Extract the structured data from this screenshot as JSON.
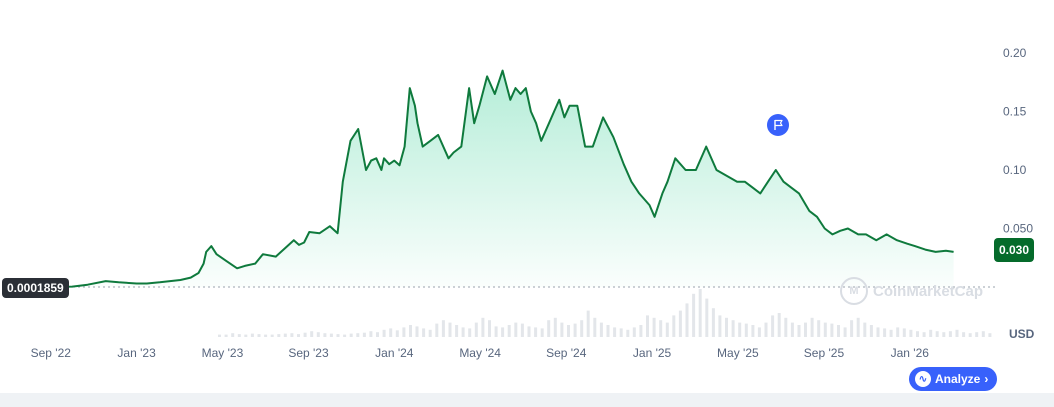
{
  "chart_data": {
    "type": "area",
    "title": "",
    "xlabel": "",
    "ylabel": "",
    "currency": "USD",
    "yticks": [
      "0.20",
      "0.15",
      "0.10",
      "0.050"
    ],
    "ytick_values": [
      0.2,
      0.15,
      0.1,
      0.05
    ],
    "ylim": [
      -0.01,
      0.215
    ],
    "xticks": [
      "Sep '22",
      "Jan '23",
      "May '23",
      "Sep '23",
      "Jan '24",
      "May '24",
      "Sep '24",
      "Jan '25",
      "May '25",
      "Sep '25",
      "Jan '26"
    ],
    "xtick_values": [
      2022.667,
      2023.0,
      2023.333,
      2023.667,
      2024.0,
      2024.333,
      2024.667,
      2025.0,
      2025.333,
      2025.667,
      2026.0
    ],
    "xlim": [
      2022.47,
      2026.35
    ],
    "min_label": "0.0001859",
    "last_label": "0.030",
    "series": [
      {
        "color": "#16a34a",
        "x": [
          2022.48,
          2022.53,
          2022.58,
          2022.63,
          2022.67,
          2022.75,
          2022.81,
          2022.88,
          2022.93,
          2023.0,
          2023.04,
          2023.09,
          2023.13,
          2023.17,
          2023.21,
          2023.24,
          2023.26,
          2023.27,
          2023.29,
          2023.31,
          2023.35,
          2023.39,
          2023.42,
          2023.46,
          2023.49,
          2023.54,
          2023.58,
          2023.61,
          2023.63,
          2023.65,
          2023.67,
          2023.71,
          2023.75,
          2023.78,
          2023.8,
          2023.83,
          2023.86,
          2023.89,
          2023.91,
          2023.93,
          2023.95,
          2023.96,
          2023.98,
          2024.0,
          2024.02,
          2024.04,
          2024.06,
          2024.08,
          2024.09,
          2024.11,
          2024.14,
          2024.17,
          2024.21,
          2024.23,
          2024.26,
          2024.29,
          2024.31,
          2024.33,
          2024.36,
          2024.39,
          2024.42,
          2024.45,
          2024.47,
          2024.49,
          2024.51,
          2024.53,
          2024.55,
          2024.57,
          2024.6,
          2024.62,
          2024.64,
          2024.66,
          2024.68,
          2024.71,
          2024.74,
          2024.77,
          2024.81,
          2024.85,
          2024.89,
          2024.92,
          2024.95,
          2024.99,
          2025.01,
          2025.04,
          2025.06,
          2025.09,
          2025.13,
          2025.17,
          2025.21,
          2025.25,
          2025.29,
          2025.33,
          2025.36,
          2025.39,
          2025.42,
          2025.45,
          2025.48,
          2025.51,
          2025.54,
          2025.57,
          2025.61,
          2025.64,
          2025.67,
          2025.7,
          2025.73,
          2025.76,
          2025.8,
          2025.83,
          2025.87,
          2025.91,
          2025.95,
          2025.99,
          2026.02,
          2026.06,
          2026.1,
          2026.14,
          2026.17
        ],
        "values": [
          0.0002,
          0.0004,
          0.0006,
          0.001,
          0.0002,
          0.0003,
          0.002,
          0.005,
          0.004,
          0.003,
          0.003,
          0.004,
          0.005,
          0.006,
          0.008,
          0.012,
          0.02,
          0.03,
          0.035,
          0.028,
          0.022,
          0.016,
          0.018,
          0.02,
          0.028,
          0.026,
          0.034,
          0.04,
          0.036,
          0.038,
          0.047,
          0.046,
          0.052,
          0.046,
          0.09,
          0.125,
          0.135,
          0.1,
          0.108,
          0.11,
          0.1,
          0.11,
          0.105,
          0.108,
          0.104,
          0.12,
          0.17,
          0.155,
          0.14,
          0.12,
          0.125,
          0.13,
          0.11,
          0.115,
          0.12,
          0.17,
          0.14,
          0.155,
          0.18,
          0.165,
          0.185,
          0.16,
          0.17,
          0.165,
          0.17,
          0.15,
          0.14,
          0.125,
          0.14,
          0.15,
          0.16,
          0.145,
          0.155,
          0.155,
          0.12,
          0.12,
          0.145,
          0.128,
          0.105,
          0.09,
          0.08,
          0.07,
          0.06,
          0.08,
          0.09,
          0.11,
          0.1,
          0.1,
          0.12,
          0.1,
          0.095,
          0.09,
          0.09,
          0.085,
          0.08,
          0.09,
          0.1,
          0.09,
          0.085,
          0.08,
          0.065,
          0.06,
          0.05,
          0.045,
          0.048,
          0.05,
          0.045,
          0.045,
          0.04,
          0.045,
          0.04,
          0.037,
          0.035,
          0.032,
          0.03,
          0.031,
          0.03
        ]
      }
    ],
    "volume": [
      0.05,
      0.05,
      0.08,
      0.06,
      0.05,
      0.07,
      0.06,
      0.05,
      0.05,
      0.06,
      0.07,
      0.08,
      0.06,
      0.09,
      0.12,
      0.1,
      0.08,
      0.07,
      0.06,
      0.05,
      0.07,
      0.08,
      0.09,
      0.12,
      0.1,
      0.15,
      0.18,
      0.14,
      0.2,
      0.25,
      0.22,
      0.18,
      0.15,
      0.28,
      0.35,
      0.3,
      0.25,
      0.2,
      0.18,
      0.3,
      0.4,
      0.35,
      0.22,
      0.2,
      0.25,
      0.3,
      0.28,
      0.22,
      0.2,
      0.18,
      0.35,
      0.4,
      0.3,
      0.25,
      0.28,
      0.35,
      0.55,
      0.4,
      0.3,
      0.25,
      0.2,
      0.18,
      0.15,
      0.2,
      0.25,
      0.45,
      0.4,
      0.35,
      0.3,
      0.45,
      0.55,
      0.7,
      0.9,
      1.0,
      0.8,
      0.6,
      0.45,
      0.4,
      0.35,
      0.3,
      0.28,
      0.25,
      0.2,
      0.3,
      0.45,
      0.5,
      0.4,
      0.3,
      0.25,
      0.3,
      0.4,
      0.35,
      0.3,
      0.28,
      0.25,
      0.2,
      0.35,
      0.4,
      0.3,
      0.25,
      0.2,
      0.18,
      0.15,
      0.2,
      0.18,
      0.15,
      0.12,
      0.1,
      0.15,
      0.12,
      0.1,
      0.12,
      0.15,
      0.1,
      0.08,
      0.1,
      0.12,
      0.08
    ],
    "grid": false,
    "legend": "none",
    "markers": [
      {
        "icon": "flag-icon",
        "x": 2025.31
      }
    ]
  },
  "ui": {
    "watermark": "CoinMarketCap",
    "analyze_label": "Analyze",
    "analyze_chevron": "›",
    "colors": {
      "line": "#16a34a",
      "accent": "#3861fb",
      "last_price_bg": "#056b2b",
      "low_bg": "#2b2f36"
    }
  }
}
